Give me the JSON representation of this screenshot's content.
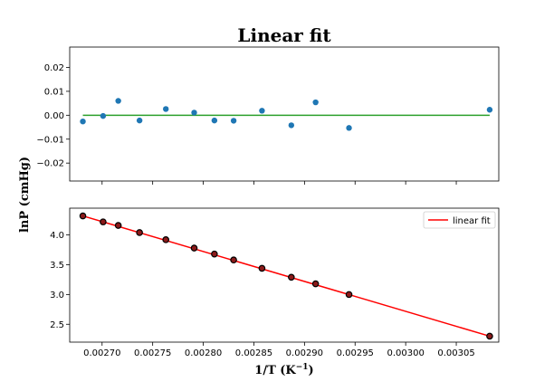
{
  "chart_data": {
    "type": "scatter",
    "title": "Linear fit",
    "xlabel": "1/T (K",
    "xlabel_sup": "−1",
    "xlabel_end": ")",
    "ylabel": "lnP (cmHg)",
    "x_ticks": [
      "0.00270",
      "0.00275",
      "0.00280",
      "0.00285",
      "0.00290",
      "0.00295",
      "0.00300",
      "0.00305"
    ],
    "x_tick_values": [
      0.0027,
      0.00275,
      0.0028,
      0.00285,
      0.0029,
      0.00295,
      0.003,
      0.00305
    ],
    "xlim": [
      0.002668,
      0.003092
    ],
    "panels": [
      {
        "name": "residuals",
        "ylim": [
          -0.0275,
          0.0285
        ],
        "y_ticks": [
          "0.02",
          "0.01",
          "0.00",
          "−0.01",
          "−0.02"
        ],
        "y_tick_values": [
          0.02,
          0.01,
          0.0,
          -0.01,
          -0.02
        ],
        "series": [
          {
            "kind": "scatter",
            "color": "#1f77b4",
            "x": [
              0.002681,
              0.002701,
              0.002716,
              0.002737,
              0.002763,
              0.002791,
              0.002811,
              0.00283,
              0.002858,
              0.002887,
              0.002911,
              0.002944,
              0.003083
            ],
            "y": [
              -0.0026,
              -0.0003,
              0.006,
              -0.0022,
              0.0026,
              0.0011,
              -0.0022,
              -0.0023,
              0.0019,
              -0.0042,
              0.0054,
              -0.0053,
              0.0023
            ]
          },
          {
            "kind": "line",
            "color": "#2ca02c",
            "x": [
              0.002681,
              0.003083
            ],
            "y": [
              0.0,
              0.0
            ]
          }
        ]
      },
      {
        "name": "fit",
        "ylim": [
          2.2,
          4.45
        ],
        "y_ticks": [
          "4.0",
          "3.5",
          "3.0",
          "2.5"
        ],
        "y_tick_values": [
          4.0,
          3.5,
          3.0,
          2.5
        ],
        "series": [
          {
            "kind": "scatter",
            "color": "#000000",
            "x": [
              0.002681,
              0.002701,
              0.002716,
              0.002737,
              0.002763,
              0.002791,
              0.002811,
              0.00283,
              0.002858,
              0.002887,
              0.002911,
              0.002944,
              0.003083
            ],
            "y": [
              4.32,
              4.22,
              4.16,
              4.04,
              3.92,
              3.78,
              3.68,
              3.58,
              3.44,
              3.29,
              3.18,
              3.0,
              2.3
            ]
          },
          {
            "kind": "line",
            "name": "linear fit",
            "color": "#ff0000",
            "x": [
              0.002681,
              0.003083
            ],
            "y": [
              4.32,
              2.3
            ]
          }
        ],
        "legend": {
          "label": "linear fit",
          "placement": "upper right"
        }
      }
    ]
  }
}
